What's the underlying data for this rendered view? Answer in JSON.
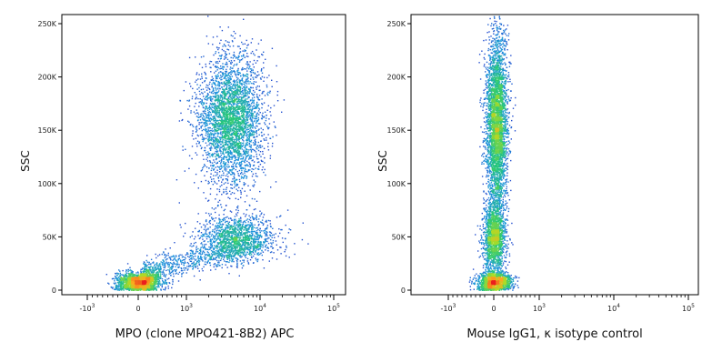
{
  "chart_data": [
    {
      "type": "scatter",
      "style": "flow-cytometry density dot plot",
      "xlabel": "MPO (clone MPO421-8B2) APC",
      "ylabel": "SSC",
      "x_scale": "biexponential",
      "xlim": [
        -2000,
        200000
      ],
      "ylim": [
        0,
        262144
      ],
      "x_ticks": [
        {
          "value": -1000,
          "base": "-10",
          "exp": "3"
        },
        {
          "value": 0,
          "base": "0",
          "exp": ""
        },
        {
          "value": 1000,
          "base": "10",
          "exp": "3"
        },
        {
          "value": 10000,
          "base": "10",
          "exp": "4"
        },
        {
          "value": 100000,
          "base": "10",
          "exp": "5"
        }
      ],
      "y_ticks": [
        {
          "value": 0,
          "label": "0"
        },
        {
          "value": 50000,
          "label": "50K"
        },
        {
          "value": 100000,
          "label": "100K"
        },
        {
          "value": 150000,
          "label": "150K"
        },
        {
          "value": 200000,
          "label": "200K"
        },
        {
          "value": 250000,
          "label": "250K"
        }
      ],
      "populations": [
        {
          "x_center": 0,
          "y_center": 8000,
          "x_spread": 220,
          "y_spread": 5000,
          "events": 1700
        },
        {
          "x_center": 4000,
          "y_center": 160000,
          "x_spread_log": 0.22,
          "y_spread": 30000,
          "events": 3500
        },
        {
          "x_center": 5000,
          "y_center": 50000,
          "x_spread_log": 0.25,
          "y_spread": 11000,
          "events": 1300
        },
        {
          "x_start": 100,
          "x_end": 8000,
          "y_start": 8000,
          "y_end": 45000,
          "events": 900,
          "shape": "diagonal tail"
        }
      ]
    },
    {
      "type": "scatter",
      "style": "flow-cytometry density dot plot",
      "xlabel": "Mouse IgG1, κ isotype control",
      "ylabel": "SSC",
      "x_scale": "biexponential",
      "xlim": [
        -2000,
        200000
      ],
      "ylim": [
        0,
        262144
      ],
      "x_ticks": [
        {
          "value": -1000,
          "base": "-10",
          "exp": "3"
        },
        {
          "value": 0,
          "base": "0",
          "exp": ""
        },
        {
          "value": 1000,
          "base": "10",
          "exp": "3"
        },
        {
          "value": 10000,
          "base": "10",
          "exp": "4"
        },
        {
          "value": 100000,
          "base": "10",
          "exp": "5"
        }
      ],
      "y_ticks": [
        {
          "value": 0,
          "label": "0"
        },
        {
          "value": 50000,
          "label": "50K"
        },
        {
          "value": 100000,
          "label": "100K"
        },
        {
          "value": 150000,
          "label": "150K"
        },
        {
          "value": 200000,
          "label": "200K"
        },
        {
          "value": 250000,
          "label": "250K"
        }
      ],
      "populations": [
        {
          "x_center": 0,
          "y_center": 8000,
          "x_spread": 180,
          "y_spread": 5000,
          "events": 1500
        },
        {
          "x_center": 50,
          "y_center": 155000,
          "x_spread": 120,
          "y_spread": 42000,
          "events": 3600
        },
        {
          "x_center": 0,
          "y_center": 50000,
          "x_spread": 120,
          "y_spread": 16000,
          "events": 1600
        }
      ]
    }
  ]
}
